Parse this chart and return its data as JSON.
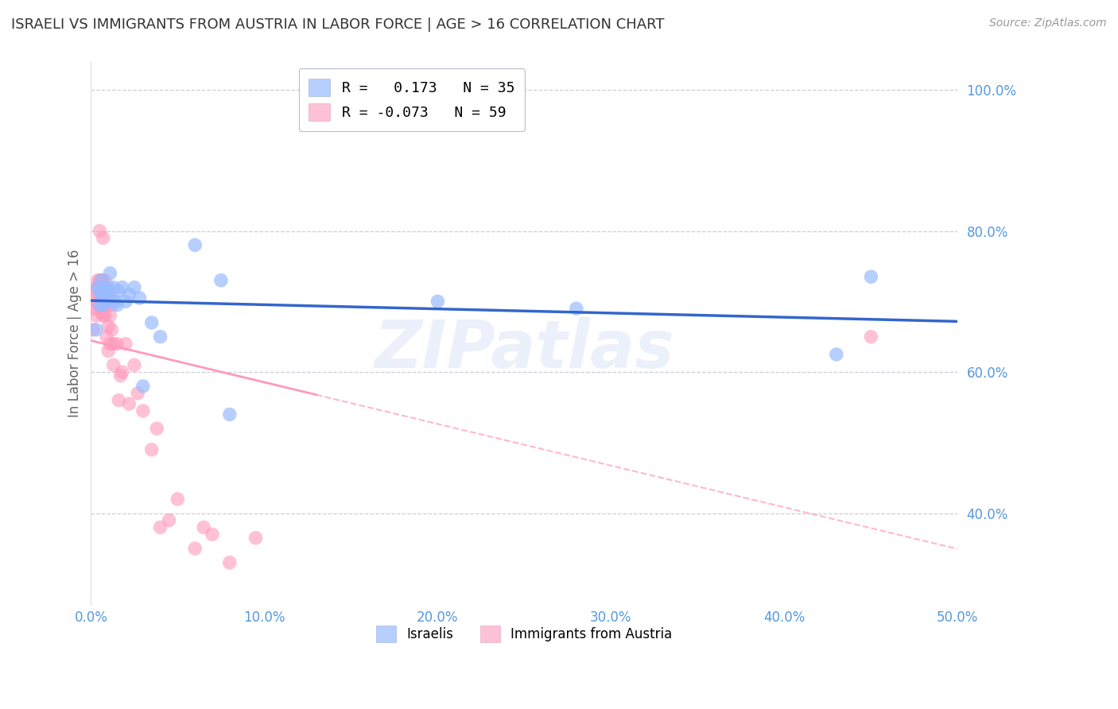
{
  "title": "ISRAELI VS IMMIGRANTS FROM AUSTRIA IN LABOR FORCE | AGE > 16 CORRELATION CHART",
  "source": "Source: ZipAtlas.com",
  "ylabel": "In Labor Force | Age > 16",
  "xlim": [
    0.0,
    0.5
  ],
  "ylim": [
    0.27,
    1.04
  ],
  "yticks": [
    0.4,
    0.6,
    0.8,
    1.0
  ],
  "ytick_labels": [
    "40.0%",
    "60.0%",
    "80.0%",
    "100.0%"
  ],
  "xticks": [
    0.0,
    0.1,
    0.2,
    0.3,
    0.4,
    0.5
  ],
  "xtick_labels": [
    "0.0%",
    "10.0%",
    "20.0%",
    "30.0%",
    "40.0%",
    "50.0%"
  ],
  "watermark": "ZIPatlas",
  "legend_label_blue": "Israelis",
  "legend_label_pink": "Immigrants from Austria",
  "legend_R_blue": "R =   0.173   N = 35",
  "legend_R_pink": "R = -0.073   N = 59",
  "blue_dot_color": "#99BBFF",
  "pink_dot_color": "#FF99BB",
  "blue_line_color": "#3366CC",
  "pink_line_color": "#FF99BB",
  "axis_label_color": "#5599DD",
  "tick_color": "#5599DD",
  "grid_color": "#CCCCDD",
  "title_color": "#333333",
  "bg_color": "#FFFFFF",
  "israelis_x": [
    0.003,
    0.004,
    0.005,
    0.005,
    0.006,
    0.006,
    0.007,
    0.007,
    0.008,
    0.008,
    0.009,
    0.009,
    0.01,
    0.01,
    0.011,
    0.012,
    0.013,
    0.014,
    0.015,
    0.016,
    0.018,
    0.02,
    0.022,
    0.025,
    0.028,
    0.03,
    0.035,
    0.04,
    0.06,
    0.075,
    0.08,
    0.2,
    0.28,
    0.43,
    0.45
  ],
  "israelis_y": [
    0.66,
    0.72,
    0.695,
    0.715,
    0.71,
    0.73,
    0.695,
    0.715,
    0.705,
    0.72,
    0.7,
    0.715,
    0.7,
    0.72,
    0.74,
    0.705,
    0.72,
    0.7,
    0.695,
    0.715,
    0.72,
    0.7,
    0.71,
    0.72,
    0.705,
    0.58,
    0.67,
    0.65,
    0.78,
    0.73,
    0.54,
    0.7,
    0.69,
    0.625,
    0.735
  ],
  "austria_x": [
    0.001,
    0.002,
    0.002,
    0.003,
    0.003,
    0.003,
    0.004,
    0.004,
    0.004,
    0.005,
    0.005,
    0.005,
    0.005,
    0.006,
    0.006,
    0.006,
    0.006,
    0.007,
    0.007,
    0.007,
    0.007,
    0.007,
    0.008,
    0.008,
    0.008,
    0.008,
    0.009,
    0.009,
    0.009,
    0.01,
    0.01,
    0.01,
    0.01,
    0.011,
    0.011,
    0.012,
    0.012,
    0.013,
    0.013,
    0.015,
    0.016,
    0.017,
    0.018,
    0.02,
    0.022,
    0.025,
    0.027,
    0.03,
    0.035,
    0.038,
    0.04,
    0.045,
    0.05,
    0.06,
    0.065,
    0.07,
    0.08,
    0.095,
    0.45
  ],
  "austria_y": [
    0.66,
    0.69,
    0.715,
    0.68,
    0.7,
    0.72,
    0.695,
    0.71,
    0.73,
    0.7,
    0.715,
    0.73,
    0.8,
    0.685,
    0.7,
    0.71,
    0.73,
    0.68,
    0.695,
    0.71,
    0.73,
    0.79,
    0.7,
    0.715,
    0.73,
    0.68,
    0.695,
    0.71,
    0.65,
    0.7,
    0.715,
    0.665,
    0.63,
    0.68,
    0.64,
    0.695,
    0.66,
    0.64,
    0.61,
    0.64,
    0.56,
    0.595,
    0.6,
    0.64,
    0.555,
    0.61,
    0.57,
    0.545,
    0.49,
    0.52,
    0.38,
    0.39,
    0.42,
    0.35,
    0.38,
    0.37,
    0.33,
    0.365,
    0.65
  ]
}
